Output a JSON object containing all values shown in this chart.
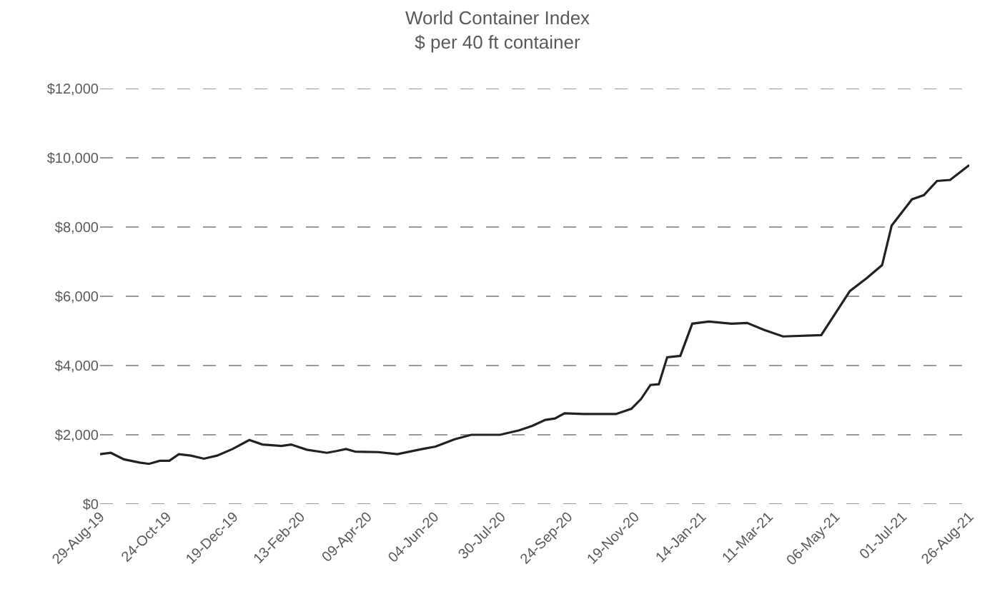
{
  "chart_data": {
    "type": "line",
    "title": "World Container Index",
    "subtitle": "$ per 40 ft container",
    "x": [
      "2019-08-29",
      "2019-09-07",
      "2019-09-18",
      "2019-10-01",
      "2019-10-09",
      "2019-10-18",
      "2019-10-26",
      "2019-11-03",
      "2019-11-13",
      "2019-11-24",
      "2019-12-05",
      "2019-12-18",
      "2020-01-01",
      "2020-01-12",
      "2020-01-28",
      "2020-02-05",
      "2020-02-18",
      "2020-03-06",
      "2020-03-14",
      "2020-03-22",
      "2020-03-30",
      "2020-04-18",
      "2020-05-04",
      "2020-05-25",
      "2020-06-05",
      "2020-06-21",
      "2020-07-05",
      "2020-07-29",
      "2020-08-14",
      "2020-08-25",
      "2020-09-05",
      "2020-09-13",
      "2020-09-21",
      "2020-10-07",
      "2020-11-03",
      "2020-11-16",
      "2020-11-24",
      "2020-12-02",
      "2020-12-09",
      "2020-12-16",
      "2020-12-27",
      "2021-01-06",
      "2021-01-20",
      "2021-02-08",
      "2021-02-21",
      "2021-03-07",
      "2021-03-23",
      "2021-04-24",
      "2021-05-05",
      "2021-05-18",
      "2021-06-01",
      "2021-06-14",
      "2021-06-22",
      "2021-07-09",
      "2021-07-19",
      "2021-07-30",
      "2021-08-10",
      "2021-08-26"
    ],
    "series": [
      {
        "color": "#222222",
        "values": [
          1440,
          1480,
          1290,
          1200,
          1160,
          1250,
          1250,
          1440,
          1400,
          1310,
          1400,
          1590,
          1850,
          1720,
          1680,
          1720,
          1570,
          1480,
          1530,
          1590,
          1510,
          1500,
          1440,
          1590,
          1660,
          1870,
          2000,
          2000,
          2130,
          2260,
          2430,
          2470,
          2620,
          2600,
          2600,
          2750,
          3030,
          3440,
          3460,
          4240,
          4280,
          5210,
          5270,
          5210,
          5230,
          5030,
          4840,
          4880,
          5460,
          6150,
          6520,
          6900,
          8040,
          8800,
          8920,
          9330,
          9360,
          9790
        ]
      }
    ],
    "xlim": [
      "2019-08-29",
      "2021-08-26"
    ],
    "xticks": [
      {
        "value": "2019-08-29",
        "label": "29-Aug-19"
      },
      {
        "value": "2019-10-24",
        "label": "24-Oct-19"
      },
      {
        "value": "2019-12-19",
        "label": "19-Dec-19"
      },
      {
        "value": "2020-02-13",
        "label": "13-Feb-20"
      },
      {
        "value": "2020-04-09",
        "label": "09-Apr-20"
      },
      {
        "value": "2020-06-04",
        "label": "04-Jun-20"
      },
      {
        "value": "2020-07-30",
        "label": "30-Jul-20"
      },
      {
        "value": "2020-09-24",
        "label": "24-Sep-20"
      },
      {
        "value": "2020-11-19",
        "label": "19-Nov-20"
      },
      {
        "value": "2021-01-14",
        "label": "14-Jan-21"
      },
      {
        "value": "2021-03-11",
        "label": "11-Mar-21"
      },
      {
        "value": "2021-05-06",
        "label": "06-May-21"
      },
      {
        "value": "2021-07-01",
        "label": "01-Jul-21"
      },
      {
        "value": "2021-08-26",
        "label": "26-Aug-21"
      }
    ],
    "ylim": [
      0,
      12000
    ],
    "yticks": [
      {
        "value": 0,
        "label": "$0"
      },
      {
        "value": 2000,
        "label": "$2,000"
      },
      {
        "value": 4000,
        "label": "$4,000"
      },
      {
        "value": 6000,
        "label": "$6,000"
      },
      {
        "value": 8000,
        "label": "$8,000"
      },
      {
        "value": 10000,
        "label": "$10,000"
      },
      {
        "value": 12000,
        "label": "$12,000"
      }
    ],
    "grid": "y",
    "marker": "none",
    "line_style": "solid"
  }
}
